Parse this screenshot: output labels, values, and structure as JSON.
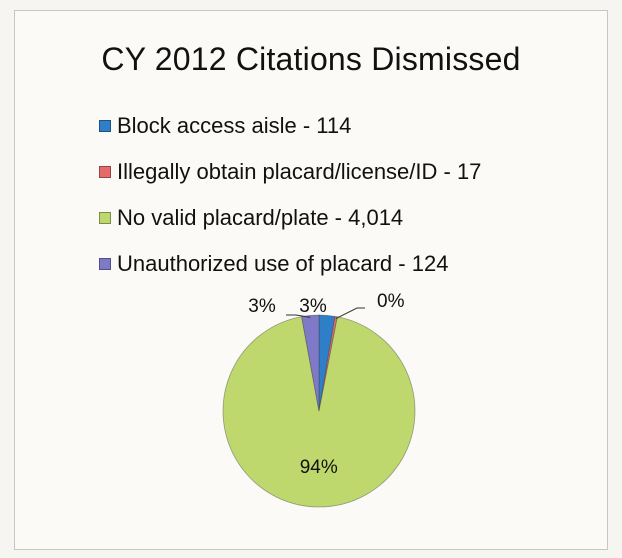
{
  "chart_data": {
    "type": "pie",
    "title": "CY 2012 Citations Dismissed",
    "legend_position": "top",
    "slices": [
      {
        "label": "Block access aisle - 114",
        "value": 114,
        "percent_label": "3%",
        "color": "#2f7fc8"
      },
      {
        "label": "Illegally obtain placard/license/ID - 17",
        "value": 17,
        "percent_label": "0%",
        "color": "#e56a6a"
      },
      {
        "label": "No valid placard/plate - 4,014",
        "value": 4014,
        "percent_label": "94%",
        "color": "#bfd86e"
      },
      {
        "label": "Unauthorized use of placard - 124",
        "value": 124,
        "percent_label": "3%",
        "color": "#7f7ac7"
      }
    ]
  }
}
